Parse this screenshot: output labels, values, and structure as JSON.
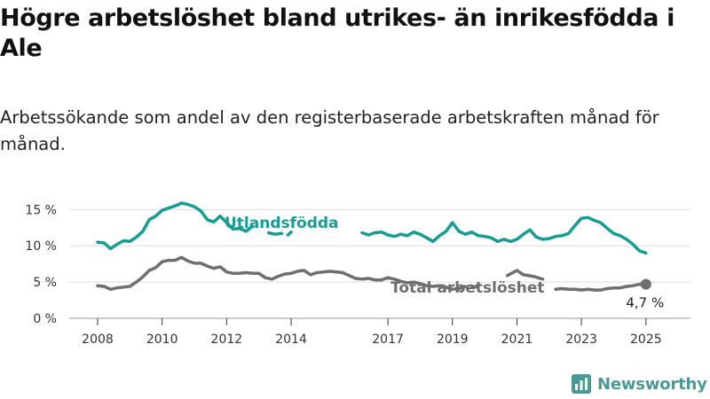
{
  "title": "Högre arbetslöshet bland utrikes- än inrikesfödda i Ale",
  "subtitle": "Arbetssökande som andel av den registerbaserade arbetskraften månad för månad.",
  "brand": "Newsworthy",
  "colors": {
    "foreign": "#169e93",
    "total": "#6e6e73",
    "grid": "#dddddd",
    "axis": "#333333",
    "brand": "#4a9a94"
  },
  "chart_data": {
    "type": "line",
    "title": "Högre arbetslöshet bland utrikes- än inrikesfödda i Ale",
    "subtitle": "Arbetssökande som andel av den registerbaserade arbetskraften månad för månad.",
    "xlim": [
      2008,
      2025.5
    ],
    "ylim": [
      0,
      17
    ],
    "grid": true,
    "x_ticks": [
      2008,
      2010,
      2012,
      2014,
      2017,
      2019,
      2021,
      2023,
      2025
    ],
    "x_tick_labels": [
      "2008",
      "2010",
      "2012",
      "2014",
      "2017",
      "2019",
      "2021",
      "2023",
      "2025"
    ],
    "y_ticks": [
      0,
      5,
      10,
      15
    ],
    "y_tick_labels": [
      "0 %",
      "5 %",
      "10 %",
      "15 %"
    ],
    "end_label": "4,7 %",
    "end_point": [
      2025.0,
      4.7
    ],
    "series": [
      {
        "name": "Utlandsfödda",
        "segments": [
          [
            [
              2008.0,
              10.5
            ],
            [
              2008.2,
              10.4
            ],
            [
              2008.4,
              9.6
            ],
            [
              2008.6,
              10.2
            ],
            [
              2008.8,
              10.7
            ],
            [
              2009.0,
              10.6
            ],
            [
              2009.2,
              11.2
            ],
            [
              2009.4,
              12.0
            ],
            [
              2009.6,
              13.6
            ],
            [
              2009.8,
              14.1
            ],
            [
              2010.0,
              14.9
            ],
            [
              2010.2,
              15.2
            ],
            [
              2010.4,
              15.5
            ],
            [
              2010.6,
              15.9
            ],
            [
              2010.8,
              15.7
            ],
            [
              2011.0,
              15.4
            ],
            [
              2011.2,
              14.8
            ],
            [
              2011.4,
              13.6
            ],
            [
              2011.6,
              13.3
            ],
            [
              2011.8,
              14.1
            ],
            [
              2012.0,
              13.2
            ],
            [
              2012.2,
              12.3
            ],
            [
              2012.4,
              12.4
            ],
            [
              2012.6,
              12.0
            ],
            [
              2012.8,
              12.7
            ]
          ],
          [
            [
              2013.3,
              11.8
            ],
            [
              2013.5,
              11.6
            ],
            [
              2013.7,
              11.7
            ]
          ],
          [
            [
              2013.9,
              11.5
            ],
            [
              2014.0,
              11.9
            ]
          ],
          [
            [
              2016.2,
              11.8
            ],
            [
              2016.4,
              11.5
            ],
            [
              2016.6,
              11.8
            ],
            [
              2016.8,
              11.9
            ],
            [
              2017.0,
              11.5
            ],
            [
              2017.2,
              11.3
            ],
            [
              2017.4,
              11.6
            ],
            [
              2017.6,
              11.4
            ],
            [
              2017.8,
              11.9
            ],
            [
              2018.0,
              11.6
            ],
            [
              2018.2,
              11.1
            ],
            [
              2018.4,
              10.6
            ],
            [
              2018.6,
              11.4
            ],
            [
              2018.8,
              12.0
            ],
            [
              2019.0,
              13.2
            ],
            [
              2019.2,
              12.0
            ],
            [
              2019.4,
              11.6
            ],
            [
              2019.6,
              11.9
            ],
            [
              2019.8,
              11.4
            ],
            [
              2020.0,
              11.3
            ],
            [
              2020.2,
              11.1
            ],
            [
              2020.4,
              10.6
            ],
            [
              2020.6,
              10.9
            ],
            [
              2020.8,
              10.6
            ],
            [
              2021.0,
              10.9
            ],
            [
              2021.2,
              11.6
            ],
            [
              2021.4,
              12.2
            ],
            [
              2021.6,
              11.2
            ],
            [
              2021.8,
              10.9
            ],
            [
              2022.0,
              11.0
            ],
            [
              2022.2,
              11.3
            ],
            [
              2022.4,
              11.4
            ],
            [
              2022.6,
              11.7
            ],
            [
              2022.8,
              12.8
            ],
            [
              2023.0,
              13.8
            ],
            [
              2023.2,
              13.9
            ],
            [
              2023.4,
              13.5
            ],
            [
              2023.6,
              13.2
            ],
            [
              2023.8,
              12.4
            ],
            [
              2024.0,
              11.7
            ],
            [
              2024.2,
              11.4
            ],
            [
              2024.4,
              10.9
            ],
            [
              2024.6,
              10.2
            ],
            [
              2024.8,
              9.3
            ],
            [
              2025.0,
              9.0
            ]
          ]
        ]
      },
      {
        "name": "Total arbetslöshet",
        "segments": [
          [
            [
              2008.0,
              4.5
            ],
            [
              2008.2,
              4.4
            ],
            [
              2008.4,
              4.0
            ],
            [
              2008.6,
              4.2
            ],
            [
              2008.8,
              4.3
            ],
            [
              2009.0,
              4.4
            ],
            [
              2009.2,
              5.0
            ],
            [
              2009.4,
              5.7
            ],
            [
              2009.6,
              6.6
            ],
            [
              2009.8,
              7.0
            ],
            [
              2010.0,
              7.8
            ],
            [
              2010.2,
              8.0
            ],
            [
              2010.4,
              8.0
            ],
            [
              2010.6,
              8.4
            ],
            [
              2010.8,
              7.9
            ],
            [
              2011.0,
              7.6
            ],
            [
              2011.2,
              7.6
            ],
            [
              2011.4,
              7.2
            ],
            [
              2011.6,
              6.9
            ],
            [
              2011.8,
              7.1
            ],
            [
              2012.0,
              6.4
            ],
            [
              2012.2,
              6.2
            ],
            [
              2012.4,
              6.2
            ],
            [
              2012.6,
              6.3
            ],
            [
              2012.8,
              6.2
            ],
            [
              2013.0,
              6.2
            ],
            [
              2013.2,
              5.6
            ],
            [
              2013.4,
              5.4
            ],
            [
              2013.6,
              5.8
            ],
            [
              2013.8,
              6.1
            ],
            [
              2014.0,
              6.2
            ],
            [
              2014.2,
              6.5
            ],
            [
              2014.4,
              6.6
            ],
            [
              2014.6,
              6.0
            ],
            [
              2014.8,
              6.3
            ],
            [
              2015.0,
              6.4
            ],
            [
              2015.2,
              6.5
            ],
            [
              2015.4,
              6.4
            ],
            [
              2015.6,
              6.3
            ],
            [
              2015.8,
              5.9
            ],
            [
              2016.0,
              5.5
            ],
            [
              2016.2,
              5.4
            ],
            [
              2016.4,
              5.5
            ],
            [
              2016.6,
              5.3
            ],
            [
              2016.8,
              5.3
            ],
            [
              2017.0,
              5.6
            ],
            [
              2017.2,
              5.4
            ],
            [
              2017.4,
              5.1
            ],
            [
              2017.6,
              4.9
            ],
            [
              2017.8,
              5.0
            ],
            [
              2018.0,
              4.8
            ],
            [
              2018.2,
              4.5
            ],
            [
              2018.4,
              4.4
            ],
            [
              2018.6,
              4.5
            ],
            [
              2018.8,
              4.3
            ],
            [
              2019.0,
              4.0
            ],
            [
              2019.2,
              4.1
            ],
            [
              2019.4,
              4.4
            ]
          ],
          [
            [
              2019.6,
              4.4
            ],
            [
              2019.8,
              4.3
            ]
          ],
          [
            [
              2020.7,
              5.9
            ],
            [
              2021.0,
              6.6
            ],
            [
              2021.2,
              6.0
            ],
            [
              2021.5,
              5.8
            ],
            [
              2021.8,
              5.4
            ]
          ],
          [
            [
              2022.2,
              4.0
            ],
            [
              2022.4,
              4.1
            ],
            [
              2022.6,
              4.0
            ],
            [
              2022.8,
              4.0
            ],
            [
              2023.0,
              3.9
            ],
            [
              2023.2,
              4.0
            ],
            [
              2023.4,
              3.9
            ],
            [
              2023.6,
              3.9
            ],
            [
              2023.8,
              4.1
            ],
            [
              2024.0,
              4.2
            ],
            [
              2024.2,
              4.2
            ],
            [
              2024.4,
              4.4
            ],
            [
              2024.6,
              4.5
            ],
            [
              2024.8,
              4.7
            ],
            [
              2025.0,
              4.7
            ]
          ]
        ]
      }
    ]
  }
}
